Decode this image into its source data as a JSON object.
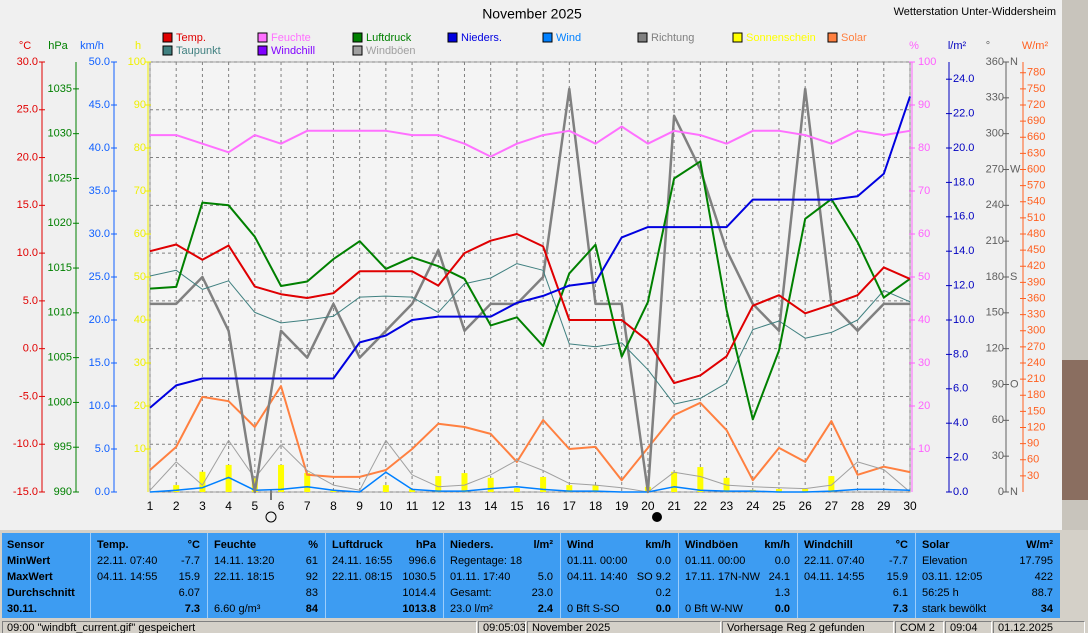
{
  "header": {
    "station": "Wetterstation Unter-Widdersheim"
  },
  "chart_data": {
    "type": "line",
    "title": "November 2025",
    "x": [
      1,
      2,
      3,
      4,
      5,
      6,
      7,
      8,
      9,
      10,
      11,
      12,
      13,
      14,
      15,
      16,
      17,
      18,
      19,
      20,
      21,
      22,
      23,
      24,
      25,
      26,
      27,
      28,
      29,
      30
    ],
    "xlim": [
      1,
      30
    ],
    "xticks": [
      1,
      2,
      3,
      4,
      5,
      6,
      7,
      8,
      9,
      10,
      11,
      12,
      13,
      14,
      15,
      16,
      17,
      18,
      19,
      20,
      21,
      22,
      23,
      24,
      25,
      26,
      27,
      28,
      29,
      30
    ],
    "grid": true,
    "axes": {
      "temp": {
        "label": "°C",
        "color": "#e00000",
        "lim": [
          -15,
          30
        ],
        "ticks": [
          {
            "value": 30,
            "label": "30.0"
          },
          {
            "value": 25,
            "label": "25.0"
          },
          {
            "value": 20,
            "label": "20.0"
          },
          {
            "value": 15,
            "label": "15.0"
          },
          {
            "value": 10,
            "label": "10.0"
          },
          {
            "value": 5,
            "label": "5.0"
          },
          {
            "value": 0,
            "label": "0.0"
          },
          {
            "value": -5,
            "label": "-5.0"
          },
          {
            "value": -10,
            "label": "-10.0"
          },
          {
            "value": -15,
            "label": "-15.0"
          }
        ]
      },
      "hpa": {
        "label": "hPa",
        "color": "#008000",
        "lim": [
          990,
          1038
        ],
        "ticks": [
          1035,
          1030,
          1025,
          1020,
          1015,
          1010,
          1005,
          1000,
          995,
          990
        ]
      },
      "kmh": {
        "label": "km/h",
        "color": "#1060ff",
        "lim": [
          0,
          50
        ],
        "ticks": [
          {
            "value": 50,
            "label": "50.0"
          },
          {
            "value": 45,
            "label": "45.0"
          },
          {
            "value": 40,
            "label": "40.0"
          },
          {
            "value": 35,
            "label": "35.0"
          },
          {
            "value": 30,
            "label": "30.0"
          },
          {
            "value": 25,
            "label": "25.0"
          },
          {
            "value": 20,
            "label": "20.0"
          },
          {
            "value": 15,
            "label": "15.0"
          },
          {
            "value": 10,
            "label": "10.0"
          },
          {
            "value": 5,
            "label": "5.0"
          },
          {
            "value": 0,
            "label": "0.0"
          }
        ]
      },
      "h": {
        "label": "h",
        "color": "#f0f000",
        "lim": [
          0,
          100
        ],
        "ticks": [
          100,
          90,
          80,
          70,
          60,
          50,
          40,
          30,
          20,
          10
        ]
      },
      "pct": {
        "label": "%",
        "color": "#ff60ff",
        "lim": [
          0,
          100
        ],
        "ticks": [
          100,
          90,
          80,
          70,
          60,
          50,
          40,
          30,
          20,
          10
        ]
      },
      "rain": {
        "label": "l/m²",
        "color": "#0000c0",
        "lim": [
          0,
          25
        ],
        "ticks": [
          {
            "value": 24,
            "label": "24.0"
          },
          {
            "value": 22,
            "label": "22.0"
          },
          {
            "value": 20,
            "label": "20.0"
          },
          {
            "value": 18,
            "label": "18.0"
          },
          {
            "value": 16,
            "label": "16.0"
          },
          {
            "value": 14,
            "label": "14.0"
          },
          {
            "value": 12,
            "label": "12.0"
          },
          {
            "value": 10,
            "label": "10.0"
          },
          {
            "value": 8,
            "label": "8.0"
          },
          {
            "value": 6,
            "label": "6.0"
          },
          {
            "value": 4,
            "label": "4.0"
          },
          {
            "value": 2,
            "label": "2.0"
          },
          {
            "value": 0,
            "label": "0.0"
          }
        ]
      },
      "deg": {
        "label": "°",
        "color": "#606060",
        "lim": [
          0,
          360
        ],
        "ticks": [
          360,
          330,
          300,
          270,
          240,
          210,
          180,
          150,
          120,
          90,
          60,
          30,
          0
        ],
        "compass": [
          {
            "value": 360,
            "label": "N"
          },
          {
            "value": 270,
            "label": "W"
          },
          {
            "value": 180,
            "label": "S"
          },
          {
            "value": 90,
            "label": "O"
          },
          {
            "value": 0,
            "label": "N"
          }
        ]
      },
      "solar": {
        "label": "W/m²",
        "color": "#ff6020",
        "lim": [
          0,
          800
        ],
        "ticks": [
          780,
          750,
          720,
          690,
          660,
          630,
          600,
          570,
          540,
          510,
          480,
          450,
          420,
          390,
          360,
          330,
          300,
          270,
          240,
          210,
          180,
          150,
          120,
          90,
          60,
          30
        ]
      }
    },
    "series": [
      {
        "name": "Temp.",
        "color": "#e00000",
        "axis": "temp",
        "style": "line",
        "values": [
          10.2,
          10.9,
          9.3,
          10.8,
          6.5,
          5.7,
          5.3,
          5.8,
          8.1,
          8.1,
          8.1,
          6.6,
          10.0,
          11.3,
          12.0,
          10.7,
          3.0,
          3.0,
          3.0,
          0.8,
          -3.6,
          -2.8,
          -0.8,
          4.5,
          5.6,
          3.7,
          4.6,
          5.6,
          8.5,
          7.3
        ]
      },
      {
        "name": "Feuchte",
        "color": "#ff70ff",
        "axis": "pct",
        "style": "line",
        "values": [
          83,
          83,
          81,
          79,
          83,
          81,
          84,
          84,
          84,
          84,
          83,
          83,
          81,
          78,
          81,
          83,
          84,
          81,
          85,
          81,
          84,
          83,
          81,
          84,
          84,
          83,
          81,
          84,
          83,
          84
        ]
      },
      {
        "name": "Luftdruck",
        "color": "#008000",
        "axis": "hpa",
        "style": "line",
        "values": [
          1012.7,
          1012.9,
          1022.3,
          1022.0,
          1018.5,
          1013.0,
          1013.5,
          1016.0,
          1018.0,
          1014.9,
          1016.2,
          1015.2,
          1013.8,
          1008.6,
          1009.5,
          1006.3,
          1014.4,
          1017.6,
          1005.1,
          1011.2,
          1025.0,
          1026.9,
          1010.3,
          998.1,
          1005.8,
          1020.5,
          1022.7,
          1017.9,
          1011.7,
          1013.8
        ]
      },
      {
        "name": "Nieders.",
        "color": "#0000e0",
        "axis": "rain",
        "style": "line",
        "values": [
          4.9,
          6.2,
          6.6,
          6.6,
          6.6,
          6.6,
          6.6,
          6.6,
          8.7,
          9.1,
          10.0,
          10.2,
          10.2,
          10.2,
          11.0,
          11.4,
          12.0,
          12.2,
          14.8,
          15.4,
          15.4,
          15.4,
          15.4,
          17.0,
          17.0,
          17.0,
          17.0,
          17.2,
          18.5,
          23.0
        ]
      },
      {
        "name": "Wind",
        "color": "#0080ff",
        "axis": "kmh",
        "style": "line",
        "values": [
          0.0,
          0.2,
          0.5,
          1.7,
          0.2,
          0.3,
          0.6,
          0.2,
          0.0,
          2.3,
          0.3,
          0.1,
          0.1,
          0.4,
          0.6,
          0.3,
          0.1,
          0.1,
          0.0,
          0.0,
          0.6,
          0.2,
          0.1,
          0.1,
          0.0,
          0.0,
          0.1,
          0.3,
          0.3,
          0.2
        ]
      },
      {
        "name": "Richtung",
        "color": "#808080",
        "axis": "deg",
        "style": "line",
        "values": [
          157.5,
          157.5,
          180,
          135,
          0,
          135,
          112.5,
          157.5,
          112.5,
          135,
          157.5,
          202.5,
          135,
          157.5,
          157.5,
          180,
          337.5,
          157.5,
          157.5,
          0,
          315,
          270,
          202.5,
          157.5,
          135,
          337.5,
          157.5,
          135,
          157.5,
          157.5
        ]
      },
      {
        "name": "Sonnenschein",
        "color": "#ffff00",
        "axis": "h",
        "style": "bar",
        "values": [
          0,
          1.6,
          4.7,
          6.3,
          3.3,
          6.3,
          4.4,
          0.5,
          0,
          1.6,
          0.7,
          3.7,
          4.4,
          3.3,
          0.9,
          3.5,
          1.6,
          1.6,
          0,
          1.2,
          4.7,
          5.8,
          3.3,
          0.5,
          0.7,
          0.7,
          3.7,
          0,
          0,
          0
        ]
      },
      {
        "name": "Solar",
        "color": "#ff8040",
        "axis": "solar",
        "style": "line",
        "values": [
          41,
          84,
          177,
          169,
          121,
          197,
          32,
          28,
          28,
          41,
          80,
          127,
          121,
          108,
          56,
          134,
          80,
          84,
          22,
          82,
          143,
          166,
          115,
          22,
          82,
          56,
          132,
          32,
          47,
          37
        ]
      },
      {
        "name": "Taupunkt",
        "color": "#408080",
        "axis": "temp",
        "style": "line",
        "values": [
          7.6,
          8.2,
          6.2,
          7.1,
          3.8,
          2.7,
          3.0,
          3.4,
          5.4,
          5.5,
          5.4,
          3.8,
          6.8,
          7.4,
          8.9,
          8.2,
          0.5,
          0.2,
          0.6,
          -2.2,
          -5.8,
          -5.2,
          -3.6,
          2.0,
          2.9,
          1.1,
          1.7,
          3.0,
          6.1,
          4.9
        ]
      },
      {
        "name": "Windchill",
        "color": "#8000ff",
        "axis": "temp",
        "style": "line",
        "values": [
          10.2,
          10.9,
          9.3,
          10.8,
          6.5,
          5.7,
          5.3,
          5.8,
          8.1,
          8.1,
          8.1,
          6.6,
          10.0,
          11.3,
          12.0,
          10.7,
          3.0,
          3.0,
          3.0,
          0.8,
          -3.6,
          -2.8,
          -0.8,
          4.5,
          5.6,
          3.7,
          4.6,
          5.6,
          8.5,
          7.3
        ]
      },
      {
        "name": "Windböen",
        "color": "#a0a0a0",
        "axis": "kmh",
        "style": "line",
        "values": [
          0.2,
          3.5,
          0.8,
          6.0,
          1.6,
          5.5,
          2.5,
          0.8,
          0.2,
          6.0,
          2.0,
          0.6,
          0.8,
          2.0,
          3.7,
          2.5,
          1.0,
          0.8,
          0.5,
          0.0,
          2.3,
          1.8,
          0.8,
          0.6,
          0.5,
          0.4,
          0.8,
          3.5,
          2.6,
          0.0
        ]
      }
    ]
  },
  "table": {
    "sensor": {
      "title": "Sensor",
      "rows": [
        "MinWert",
        "MaxWert",
        "Durchschnitt",
        "30.11."
      ]
    },
    "columns": [
      {
        "title": "Temp.",
        "unit": "°C",
        "rows": [
          {
            "l": "22.11. 07:40",
            "r": "-7.7"
          },
          {
            "l": "04.11. 14:55",
            "r": "15.9"
          },
          {
            "r": "6.07"
          },
          {
            "r": "7.3"
          }
        ]
      },
      {
        "title": "Feuchte",
        "unit": "%",
        "rows": [
          {
            "l": "14.11. 13:20",
            "r": "61"
          },
          {
            "l": "22.11. 18:15",
            "r": "92"
          },
          {
            "r": "83"
          },
          {
            "l": "6.60 g/m³",
            "r": "84"
          }
        ]
      },
      {
        "title": "Luftdruck",
        "unit": "hPa",
        "rows": [
          {
            "l": "24.11. 16:55",
            "r": "996.6"
          },
          {
            "l": "22.11. 08:15",
            "r": "1030.5"
          },
          {
            "r": "1014.4"
          },
          {
            "r": "1013.8"
          }
        ]
      },
      {
        "title": "Nieders.",
        "unit": "l/m²",
        "rows": [
          {
            "l": "Regentage: 18"
          },
          {
            "l": "01.11. 17:40",
            "r": "5.0"
          },
          {
            "l": "Gesamt:",
            "r": "23.0"
          },
          {
            "l": "23.0 l/m²",
            "r": "2.4"
          }
        ]
      },
      {
        "title": "Wind",
        "unit": "km/h",
        "rows": [
          {
            "l": "01.11. 00:00",
            "r": "0.0"
          },
          {
            "l": "04.11. 14:40",
            "r": "SO 9.2"
          },
          {
            "r": "0.2"
          },
          {
            "l": "0 Bft S-SO",
            "r": "0.0"
          }
        ]
      },
      {
        "title": "Windböen",
        "unit": "km/h",
        "rows": [
          {
            "l": "01.11. 00:00",
            "r": "0.0"
          },
          {
            "l": "17.11. 17N-NW",
            "r": "24.1"
          },
          {
            "r": "1.3"
          },
          {
            "l": "0 Bft W-NW",
            "r": "0.0"
          }
        ]
      },
      {
        "title": "Windchill",
        "unit": "°C",
        "rows": [
          {
            "l": "22.11. 07:40",
            "r": "-7.7"
          },
          {
            "l": "04.11. 14:55",
            "r": "15.9"
          },
          {
            "r": "6.1"
          },
          {
            "r": "7.3"
          }
        ]
      },
      {
        "title": "Solar",
        "unit": "W/m²",
        "rows": [
          {
            "l": "Elevation",
            "r": "17.795"
          },
          {
            "l": "03.11. 12:05",
            "r": "422"
          },
          {
            "l": "56:25 h",
            "r": "88.7"
          },
          {
            "l": "stark bewölkt",
            "r": "34"
          }
        ]
      }
    ]
  },
  "status_bar": [
    "09:00 \"windbft_current.gif\" gespeichert",
    "09:05:03",
    "November 2025",
    "Vorhersage Reg 2 gefunden",
    "COM 2",
    "09:04",
    "01.12.2025"
  ]
}
